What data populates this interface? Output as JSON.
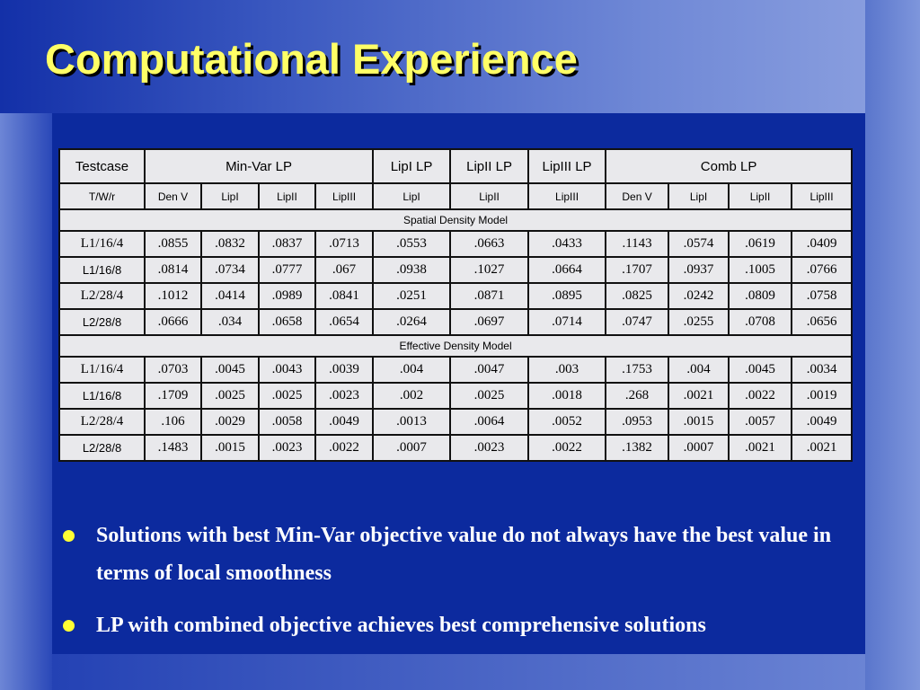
{
  "title": "Computational Experience",
  "table": {
    "header_top": [
      "Testcase",
      "Min-Var LP",
      "LipI LP",
      "LipII LP",
      "LipIII LP",
      "Comb LP"
    ],
    "header_sub": [
      "T/W/r",
      "Den V",
      "LipI",
      "LipII",
      "LipIII",
      "LipI",
      "LipII",
      "LipIII",
      "Den V",
      "LipI",
      "LipII",
      "LipIII"
    ],
    "sections": [
      {
        "label": "Spatial Density Model",
        "rows": [
          [
            "L1/16/4",
            ".0855",
            ".0832",
            ".0837",
            ".0713",
            ".0553",
            ".0663",
            ".0433",
            ".1143",
            ".0574",
            ".0619",
            ".0409"
          ],
          [
            "L1/16/8",
            ".0814",
            ".0734",
            ".0777",
            ".067",
            ".0938",
            ".1027",
            ".0664",
            ".1707",
            ".0937",
            ".1005",
            ".0766"
          ],
          [
            "L2/28/4",
            ".1012",
            ".0414",
            ".0989",
            ".0841",
            ".0251",
            ".0871",
            ".0895",
            ".0825",
            ".0242",
            ".0809",
            ".0758"
          ],
          [
            "L2/28/8",
            ".0666",
            ".034",
            ".0658",
            ".0654",
            ".0264",
            ".0697",
            ".0714",
            ".0747",
            ".0255",
            ".0708",
            ".0656"
          ]
        ]
      },
      {
        "label": "Effective Density Model",
        "rows": [
          [
            "L1/16/4",
            ".0703",
            ".0045",
            ".0043",
            ".0039",
            ".004",
            ".0047",
            ".003",
            ".1753",
            ".004",
            ".0045",
            ".0034"
          ],
          [
            "L1/16/8",
            ".1709",
            ".0025",
            ".0025",
            ".0023",
            ".002",
            ".0025",
            ".0018",
            ".268",
            ".0021",
            ".0022",
            ".0019"
          ],
          [
            "L2/28/4",
            ".106",
            ".0029",
            ".0058",
            ".0049",
            ".0013",
            ".0064",
            ".0052",
            ".0953",
            ".0015",
            ".0057",
            ".0049"
          ],
          [
            "L2/28/8",
            ".1483",
            ".0015",
            ".0023",
            ".0022",
            ".0007",
            ".0023",
            ".0022",
            ".1382",
            ".0007",
            ".0021",
            ".0021"
          ]
        ]
      }
    ]
  },
  "bullets": [
    "Solutions with best Min-Var objective value do not always have the best value in terms of local smoothness",
    "LP with combined objective achieves best comprehensive solutions"
  ]
}
